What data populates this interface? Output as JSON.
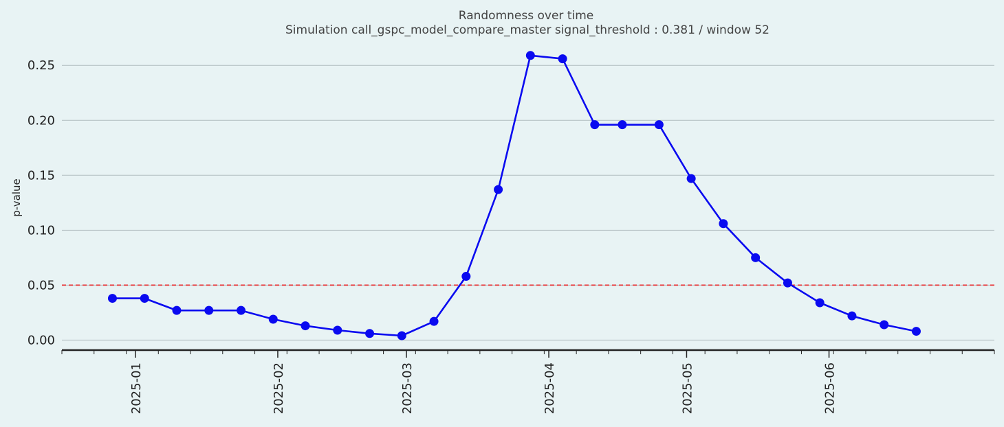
{
  "chart_data": {
    "type": "line",
    "title": "Randomness over time",
    "subtitle": "Simulation call_gspc_model_compare_master signal_threshold : 0.381 / window 52",
    "xlabel": "",
    "ylabel": "p-value",
    "xlim": [
      "2024-12-16",
      "2025-07-07"
    ],
    "ylim": [
      -0.0085,
      0.272
    ],
    "y_ticks": [
      0.0,
      0.05,
      0.1,
      0.15,
      0.2,
      0.25
    ],
    "y_tick_labels": [
      "0.00",
      "0.05",
      "0.10",
      "0.15",
      "0.20",
      "0.25"
    ],
    "x_ticks": [
      "2025-01-01",
      "2025-02-01",
      "2025-03-01",
      "2025-04-01",
      "2025-05-01",
      "2025-06-01"
    ],
    "x_tick_labels": [
      "2025-01",
      "2025-02",
      "2025-03",
      "2025-04",
      "2025-05",
      "2025-06"
    ],
    "grid": "horizontal",
    "threshold": {
      "y": 0.05,
      "color": "#e8292c",
      "style": "dashed"
    },
    "series": [
      {
        "color": "#0a0af0",
        "x": [
          "2024-12-27",
          "2025-01-03",
          "2025-01-10",
          "2025-01-17",
          "2025-01-24",
          "2025-01-31",
          "2025-02-07",
          "2025-02-14",
          "2025-02-21",
          "2025-02-28",
          "2025-03-07",
          "2025-03-14",
          "2025-03-21",
          "2025-03-28",
          "2025-04-04",
          "2025-04-11",
          "2025-04-17",
          "2025-04-25",
          "2025-05-02",
          "2025-05-09",
          "2025-05-16",
          "2025-05-23",
          "2025-05-30",
          "2025-06-06",
          "2025-06-13",
          "2025-06-20"
        ],
        "y": [
          0.038,
          0.038,
          0.027,
          0.027,
          0.027,
          0.019,
          0.013,
          0.009,
          0.006,
          0.004,
          0.017,
          0.058,
          0.137,
          0.259,
          0.256,
          0.196,
          0.196,
          0.196,
          0.147,
          0.106,
          0.075,
          0.052,
          0.034,
          0.022,
          0.014,
          0.008
        ]
      }
    ]
  }
}
